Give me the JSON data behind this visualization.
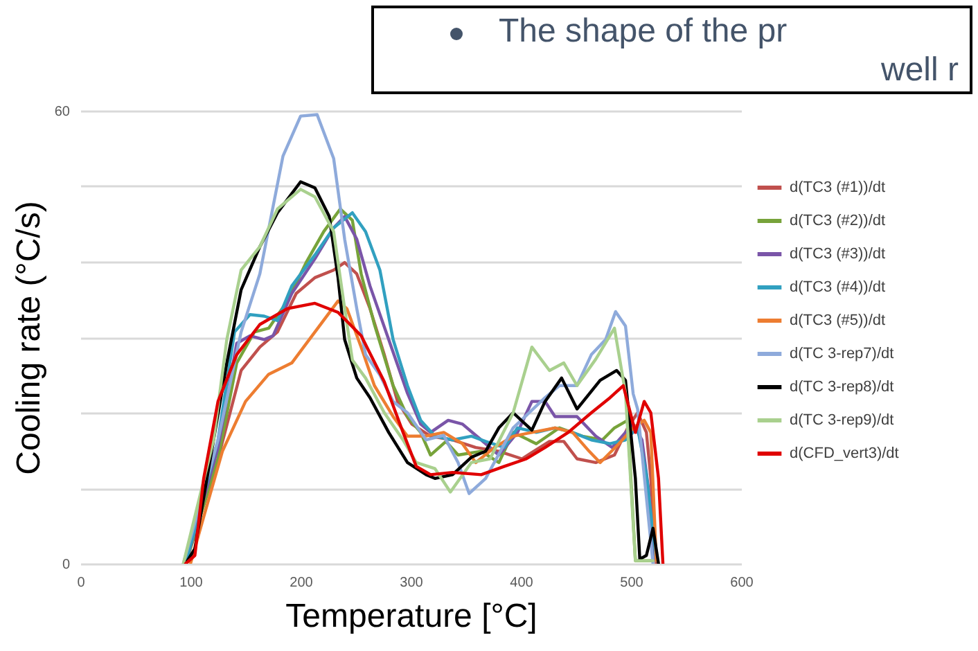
{
  "chart_data": {
    "type": "line",
    "xlabel": "Temperature [°C]",
    "ylabel": "Cooling rate (°C/s)",
    "annotations": [
      "The shape of the pr",
      "well r"
    ],
    "xlim": [
      0,
      600
    ],
    "xticks": [
      0,
      100,
      200,
      300,
      400,
      500,
      600
    ],
    "ylim": [
      0,
      60
    ],
    "yticks": [
      0,
      {
        "value": 10,
        "label": null
      },
      {
        "value": 20,
        "label": null
      },
      {
        "value": 30,
        "label": null
      },
      {
        "value": 40,
        "label": null
      },
      {
        "value": 50,
        "label": null
      },
      60
    ],
    "grid": "y",
    "legend": "right",
    "series": [
      {
        "name": "d(TC3 (#1))/dt",
        "color": "#c0504d",
        "x": [
          95.6,
          125,
          146,
          163,
          179,
          196,
          213,
          230,
          240,
          251,
          263,
          276,
          288,
          301,
          318,
          338,
          359,
          380,
          401,
          426,
          439,
          451,
          468,
          485,
          497,
          506,
          514,
          518,
          523
        ],
        "values": [
          0,
          13.9,
          25.6,
          28.7,
          30.7,
          35.8,
          37.9,
          38.9,
          39.9,
          38.4,
          33.8,
          27.7,
          21.5,
          18.5,
          16.9,
          16.4,
          15.4,
          14.9,
          13.9,
          16.2,
          16.2,
          13.9,
          13.4,
          14.4,
          18,
          20,
          17.4,
          11.3,
          0
        ]
      },
      {
        "name": "d(TC3 (#2))/dt",
        "color": "#77a33a",
        "x": [
          95.6,
          125,
          142,
          158,
          171,
          188,
          205,
          221,
          236,
          247,
          255,
          267,
          284,
          297,
          309,
          318,
          332,
          343,
          364,
          380,
          393,
          414,
          435,
          456,
          474,
          485,
          497,
          504,
          518
        ],
        "values": [
          0,
          13.9,
          26.6,
          30.7,
          31.2,
          34.8,
          39.9,
          44,
          47,
          45.5,
          38.4,
          31.7,
          23.6,
          19.5,
          17.4,
          14.4,
          16.2,
          14.4,
          14.9,
          13.4,
          17.4,
          15.9,
          18,
          16.9,
          16.4,
          18,
          19,
          0.4,
          0.4
        ]
      },
      {
        "name": "d(TC3 (#3))/dt",
        "color": "#7a55a8",
        "x": [
          95.6,
          125,
          142,
          154,
          167,
          175,
          192,
          213,
          230,
          240,
          251,
          263,
          280,
          297,
          309,
          318,
          334,
          347,
          364,
          380,
          397,
          410,
          422,
          431,
          451,
          468,
          483,
          495,
          502,
          510,
          516,
          520
        ],
        "values": [
          0,
          15.4,
          29.2,
          30.2,
          29.7,
          30.2,
          35.8,
          40.4,
          44.5,
          46,
          43,
          36.8,
          29.7,
          22.6,
          18.5,
          17.4,
          19,
          18.5,
          16.4,
          14.4,
          17.4,
          21.5,
          21.5,
          19.5,
          19.5,
          16.9,
          15.4,
          17.4,
          18.5,
          16.4,
          9.8,
          0.4
        ]
      },
      {
        "name": "d(TC3 (#4))/dt",
        "color": "#31a0c0",
        "x": [
          95.6,
          125,
          140,
          154,
          167,
          179,
          192,
          213,
          230,
          247,
          259,
          272,
          284,
          297,
          309,
          322,
          338,
          355,
          368,
          385,
          397,
          414,
          431,
          447,
          464,
          481,
          495,
          506,
          514,
          523
        ],
        "values": [
          0,
          16.4,
          30.7,
          33,
          32.8,
          32.2,
          36.8,
          40.9,
          44.5,
          46.5,
          44,
          38.9,
          29.7,
          23.6,
          19,
          16.9,
          16.4,
          16.9,
          16.2,
          15.4,
          18,
          17.4,
          18,
          17.4,
          16.4,
          15.9,
          16.4,
          18,
          11.8,
          0.4
        ]
      },
      {
        "name": "d(TC3 (#5))/dt",
        "color": "#ed7d31",
        "x": [
          100,
          112,
          129,
          150,
          171,
          192,
          213,
          234,
          242,
          255,
          267,
          284,
          297,
          313,
          330,
          347,
          359,
          376,
          393,
          410,
          431,
          447,
          462,
          472,
          489,
          502,
          512,
          518,
          523
        ],
        "values": [
          0,
          6.2,
          14.9,
          21.5,
          25.1,
          26.6,
          30.7,
          34.8,
          33.8,
          28.7,
          23.6,
          19.5,
          16.9,
          16.9,
          17.4,
          15.9,
          13.4,
          15.4,
          16.9,
          17.4,
          18,
          17.4,
          14.9,
          13.4,
          15.9,
          18,
          19,
          17.4,
          0.4
        ]
      },
      {
        "name": "d(TC 3-rep7)/dt",
        "color": "#8eaadb",
        "x": [
          93.5,
          125,
          146,
          163,
          184,
          200,
          215,
          230,
          240,
          251,
          259,
          272,
          284,
          297,
          314,
          330,
          343,
          353,
          368,
          393,
          422,
          435,
          451,
          464,
          477,
          486,
          495,
          502,
          506,
          520
        ],
        "values": [
          0,
          16.4,
          30.7,
          38.4,
          54,
          59.3,
          59.5,
          53.7,
          43,
          33.8,
          27.7,
          25,
          21.5,
          20,
          16.4,
          17,
          13.4,
          9.3,
          11.3,
          18,
          22,
          23.6,
          23.6,
          27.7,
          29.7,
          33.4,
          31.5,
          22.5,
          20.5,
          0
        ]
      },
      {
        "name": "d(TC 3-rep8)/dt",
        "color": "#000000",
        "x": [
          95.6,
          104,
          121,
          133,
          146,
          163,
          179,
          200,
          213,
          226,
          234,
          240,
          251,
          263,
          280,
          297,
          314,
          322,
          338,
          355,
          368,
          380,
          393,
          410,
          422,
          437,
          451,
          472,
          487,
          495,
          504,
          508,
          514,
          520,
          525
        ],
        "values": [
          0,
          2,
          16.4,
          26.6,
          36.3,
          42,
          46.5,
          50.6,
          49.8,
          46,
          37.9,
          29.7,
          24.6,
          22,
          17.4,
          13.4,
          11.8,
          11.3,
          11.8,
          14.1,
          14.9,
          18,
          20,
          17.7,
          21.5,
          24.6,
          20.5,
          24.3,
          25.6,
          24.3,
          11.3,
          0.6,
          1.1,
          4.7,
          0
        ]
      },
      {
        "name": "d(TC 3-rep9)/dt",
        "color": "#a9d08e",
        "x": [
          93.5,
          121,
          133,
          146,
          163,
          179,
          200,
          213,
          230,
          240,
          247,
          259,
          276,
          293,
          305,
          322,
          336,
          355,
          372,
          393,
          410,
          426,
          439,
          451,
          468,
          485,
          495,
          504,
          514,
          520
        ],
        "values": [
          0,
          16.4,
          29.7,
          38.9,
          42,
          47,
          49.6,
          48.6,
          44,
          33.8,
          27,
          24.6,
          20,
          16.4,
          13.4,
          12.6,
          9.5,
          13.4,
          13.9,
          20,
          28.7,
          25.6,
          26.6,
          23.6,
          27.1,
          31.2,
          22.6,
          0.4,
          0.4,
          0.4
        ]
      },
      {
        "name": "d(CFD_vert3)/dt",
        "color": "#e00000",
        "x": [
          95.6,
          104,
          112,
          125,
          142,
          163,
          188,
          213,
          234,
          255,
          276,
          293,
          305,
          318,
          338,
          364,
          385,
          405,
          422,
          443,
          464,
          481,
          493,
          504,
          512,
          518,
          525,
          529
        ],
        "values": [
          0,
          1.1,
          11.3,
          21.5,
          27.7,
          31.7,
          33.8,
          34.5,
          33.3,
          30.2,
          24.1,
          17.4,
          12.9,
          11.8,
          12.1,
          11.8,
          12.9,
          13.9,
          15.4,
          17.4,
          20,
          22,
          23.6,
          17.4,
          21.5,
          20,
          11.3,
          0
        ]
      }
    ]
  }
}
